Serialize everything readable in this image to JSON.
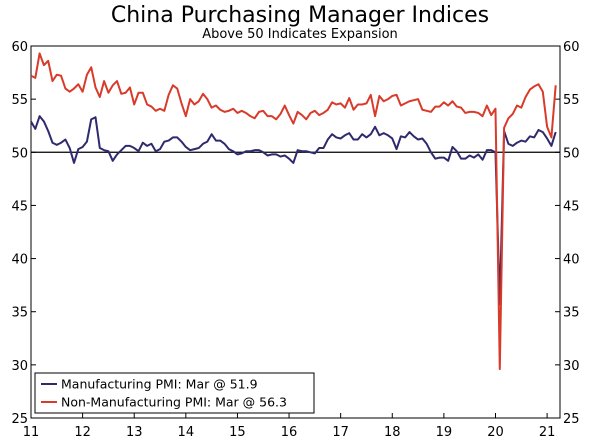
{
  "chart_data": {
    "type": "line",
    "title": "China Purchasing Manager Indices",
    "subtitle": "Above 50 Indicates Expansion",
    "ylim": [
      25,
      60
    ],
    "yticks": [
      25,
      30,
      35,
      40,
      45,
      50,
      55,
      60
    ],
    "xlim": [
      2011.0,
      2021.25
    ],
    "xticks": [
      {
        "value": 2011,
        "label": "11"
      },
      {
        "value": 2012,
        "label": "12"
      },
      {
        "value": 2013,
        "label": "13"
      },
      {
        "value": 2014,
        "label": "14"
      },
      {
        "value": 2015,
        "label": "15"
      },
      {
        "value": 2016,
        "label": "16"
      },
      {
        "value": 2017,
        "label": "17"
      },
      {
        "value": 2018,
        "label": "18"
      },
      {
        "value": 2019,
        "label": "19"
      },
      {
        "value": 2020,
        "label": "20"
      },
      {
        "value": 2021,
        "label": "21"
      }
    ],
    "reference_line": 50,
    "legend_position": "bottom-left",
    "start": "2011-01",
    "frequency": "monthly",
    "series": [
      {
        "name": "Manufacturing PMI: Mar @ 51.9",
        "color": "#2e2a6e",
        "values": [
          52.9,
          52.2,
          53.4,
          52.9,
          52.0,
          50.9,
          50.7,
          50.9,
          51.2,
          50.4,
          49.0,
          50.3,
          50.5,
          51.0,
          53.1,
          53.3,
          50.4,
          50.2,
          50.1,
          49.2,
          49.8,
          50.2,
          50.6,
          50.6,
          50.4,
          50.1,
          50.9,
          50.6,
          50.8,
          50.1,
          50.3,
          51.0,
          51.1,
          51.4,
          51.4,
          51.0,
          50.5,
          50.2,
          50.3,
          50.4,
          50.8,
          51.0,
          51.7,
          51.1,
          51.1,
          50.8,
          50.3,
          50.1,
          49.8,
          49.9,
          50.1,
          50.1,
          50.2,
          50.2,
          50.0,
          49.7,
          49.8,
          49.8,
          49.6,
          49.7,
          49.4,
          49.0,
          50.2,
          50.1,
          50.1,
          50.0,
          49.9,
          50.4,
          50.4,
          51.2,
          51.7,
          51.4,
          51.3,
          51.6,
          51.8,
          51.2,
          51.2,
          51.7,
          51.4,
          51.7,
          52.4,
          51.6,
          51.8,
          51.6,
          51.3,
          50.3,
          51.5,
          51.4,
          51.9,
          51.5,
          51.2,
          51.3,
          50.8,
          50.0,
          49.4,
          49.5,
          49.5,
          49.2,
          50.5,
          50.1,
          49.4,
          49.4,
          49.7,
          49.5,
          49.8,
          49.3,
          50.2,
          50.2,
          50.0,
          35.7,
          52.0,
          50.8,
          50.6,
          50.9,
          51.1,
          51.0,
          51.5,
          51.4,
          52.1,
          51.9,
          51.3,
          50.6,
          51.9
        ]
      },
      {
        "name": "Non-Manufacturing PMI: Mar @ 56.3",
        "color": "#d93b2b",
        "values": [
          57.2,
          57.0,
          59.3,
          58.2,
          58.6,
          56.7,
          57.3,
          57.2,
          56.0,
          55.7,
          56.0,
          56.4,
          55.7,
          57.3,
          58.0,
          56.1,
          55.2,
          56.7,
          55.6,
          56.3,
          56.7,
          55.5,
          55.6,
          56.1,
          54.5,
          55.6,
          55.6,
          54.5,
          54.3,
          53.9,
          54.1,
          53.9,
          55.4,
          56.3,
          56.0,
          54.6,
          53.4,
          55.0,
          54.5,
          54.8,
          55.5,
          55.0,
          54.2,
          54.4,
          54.0,
          53.8,
          53.9,
          54.1,
          53.7,
          53.9,
          53.7,
          53.4,
          53.2,
          53.8,
          53.9,
          53.4,
          53.4,
          53.1,
          53.6,
          54.4,
          53.5,
          52.7,
          53.8,
          53.5,
          53.1,
          53.7,
          53.9,
          53.5,
          53.7,
          54.0,
          54.7,
          54.5,
          54.6,
          54.2,
          55.1,
          54.0,
          54.5,
          54.5,
          54.6,
          55.4,
          53.4,
          55.3,
          54.8,
          55.0,
          55.3,
          55.4,
          54.4,
          54.6,
          54.8,
          54.9,
          55.0,
          54.0,
          53.9,
          53.8,
          54.3,
          54.3,
          54.7,
          54.4,
          54.8,
          54.3,
          54.2,
          53.7,
          53.8,
          53.8,
          53.7,
          53.4,
          54.4,
          53.5,
          54.1,
          29.6,
          52.3,
          53.2,
          53.6,
          54.4,
          54.2,
          55.2,
          55.9,
          56.2,
          56.4,
          55.7,
          52.4,
          51.4,
          56.3
        ]
      }
    ]
  }
}
